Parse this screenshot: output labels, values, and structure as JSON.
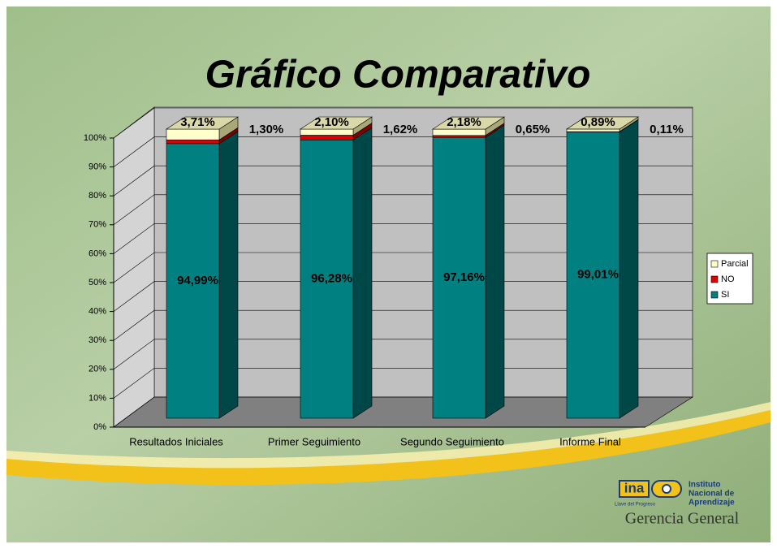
{
  "chart_data": {
    "type": "bar3d_stacked",
    "title": "Gráfico Comparativo",
    "categories": [
      "Resultados Iniciales",
      "Primer Seguimiento",
      "Segundo Seguimiento",
      "Informe Final"
    ],
    "series": [
      {
        "name": "SI",
        "color": "#008080",
        "values": [
          94.99,
          96.28,
          97.16,
          99.01
        ],
        "value_labels": [
          "94,99%",
          "96,28%",
          "97,16%",
          "99,01%"
        ]
      },
      {
        "name": "NO",
        "color": "#e00000",
        "values": [
          1.3,
          1.62,
          0.65,
          0.11
        ],
        "value_labels": [
          "1,30%",
          "1,62%",
          "0,65%",
          "0,11%"
        ]
      },
      {
        "name": "Parcial",
        "color": "#ffffcc",
        "values": [
          3.71,
          2.1,
          2.18,
          0.89
        ],
        "value_labels": [
          "3,71%",
          "2,10%",
          "2,18%",
          "0,89%"
        ]
      }
    ],
    "ylim": [
      0,
      100
    ],
    "yticks": [
      {
        "value": 0,
        "label": "0%"
      },
      {
        "value": 10,
        "label": "10%"
      },
      {
        "value": 20,
        "label": "20%"
      },
      {
        "value": 30,
        "label": "30%"
      },
      {
        "value": 40,
        "label": "40%"
      },
      {
        "value": 50,
        "label": "50%"
      },
      {
        "value": 60,
        "label": "60%"
      },
      {
        "value": 70,
        "label": "70%"
      },
      {
        "value": 80,
        "label": "80%"
      },
      {
        "value": 90,
        "label": "90%"
      },
      {
        "value": 100,
        "label": "100%"
      }
    ],
    "grid": true,
    "legend": "right",
    "stacked": true
  },
  "branding": {
    "logo": "ina",
    "slogan": "Llave del Progreso",
    "institute": [
      "Instituto",
      "Nacional de",
      "Aprendizaje"
    ],
    "department": "Gerencia General"
  }
}
